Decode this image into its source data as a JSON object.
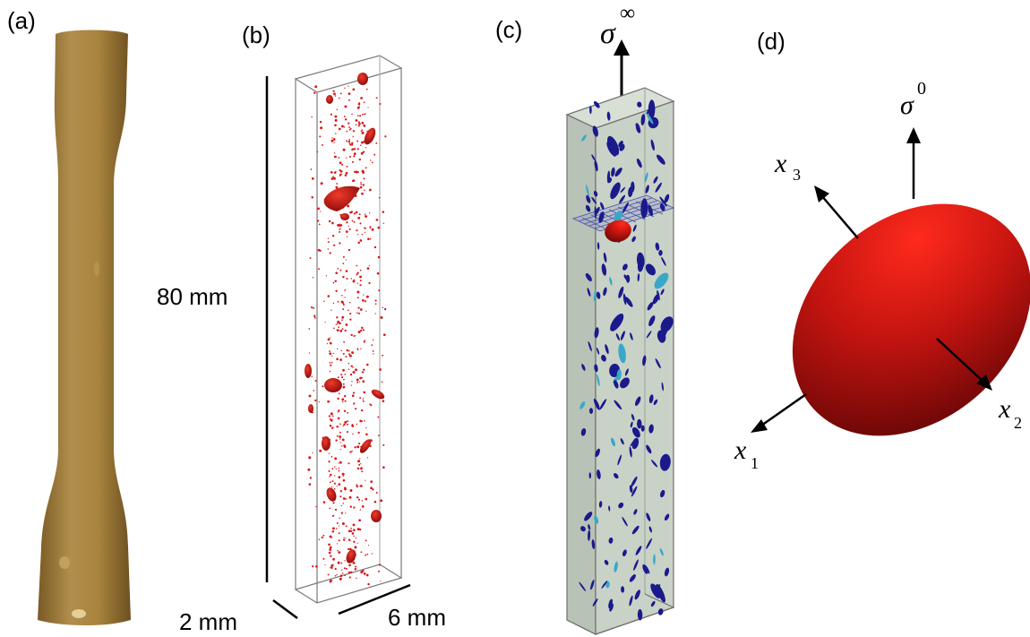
{
  "panels": {
    "a": {
      "label": "(a)"
    },
    "b": {
      "label": "(b)",
      "dim_length": "80 mm",
      "dim_thickness": "2 mm",
      "dim_width": "6 mm"
    },
    "c": {
      "label": "(c)",
      "stress_symbol": "σ",
      "stress_superscript": "∞"
    },
    "d": {
      "label": "(d)",
      "stress_symbol": "σ",
      "stress_superscript": "0",
      "axis_x1": "x",
      "axis_x1_sub": "1",
      "axis_x2": "x",
      "axis_x2_sub": "2",
      "axis_x3": "x",
      "axis_x3_sub": "3"
    }
  },
  "colors": {
    "specimen": "#9c7a3a",
    "pores_b": "#d81818",
    "box_c_fill": "#c8d2c8",
    "pores_c": "#1a1a8c",
    "pores_c_light": "#38a8c8",
    "ellipsoid": "#b01010"
  }
}
